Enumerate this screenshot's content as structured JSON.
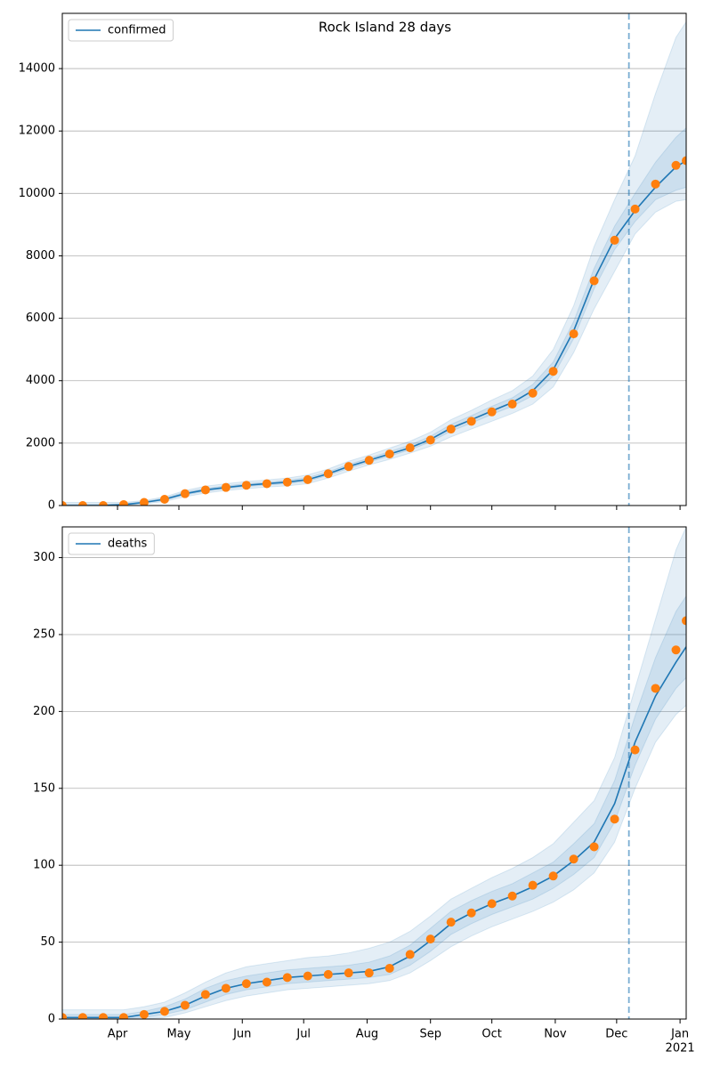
{
  "chart_data": [
    {
      "type": "line",
      "title": "Rock Island 28 days",
      "x": [
        0,
        10,
        20,
        30,
        40,
        50,
        60,
        70,
        80,
        90,
        100,
        110,
        120,
        130,
        140,
        150,
        160,
        170,
        180,
        190,
        200,
        210,
        220,
        230,
        240,
        250,
        260,
        270,
        280,
        290,
        300,
        305
      ],
      "series": [
        {
          "name": "confirmed",
          "color": "#1f77b4",
          "values": [
            0,
            0,
            0,
            30,
            100,
            200,
            380,
            500,
            580,
            650,
            700,
            750,
            830,
            1020,
            1250,
            1450,
            1650,
            1850,
            2120,
            2480,
            2750,
            3030,
            3300,
            3680,
            4350,
            5600,
            7250,
            8550,
            9450,
            10200,
            10850,
            11050
          ]
        },
        {
          "color": "#ff7f0e",
          "values": [
            0,
            0,
            0,
            30,
            100,
            200,
            380,
            500,
            580,
            650,
            700,
            750,
            830,
            1020,
            1250,
            1450,
            1650,
            1850,
            2100,
            2450,
            2700,
            3000,
            3250,
            3600,
            4300,
            5500,
            7200,
            8500,
            9500,
            10300,
            10900,
            11050
          ]
        }
      ],
      "bands": [
        {
          "color": "#1f77b4",
          "lower": [
            0,
            0,
            0,
            0,
            50,
            130,
            280,
            400,
            480,
            540,
            590,
            630,
            700,
            880,
            1100,
            1300,
            1480,
            1680,
            1900,
            2200,
            2450,
            2700,
            2950,
            3250,
            3800,
            4900,
            6300,
            7500,
            8700,
            9400,
            9750,
            9800
          ],
          "upper": [
            100,
            100,
            100,
            100,
            160,
            280,
            480,
            620,
            700,
            770,
            820,
            880,
            980,
            1170,
            1420,
            1620,
            1840,
            2060,
            2350,
            2750,
            3050,
            3380,
            3680,
            4150,
            5000,
            6400,
            8300,
            9800,
            11200,
            13200,
            15000,
            15500
          ]
        },
        {
          "color": "#1f77b4",
          "lower": [
            0,
            0,
            0,
            10,
            80,
            170,
            340,
            460,
            540,
            610,
            660,
            700,
            780,
            970,
            1190,
            1390,
            1590,
            1780,
            2040,
            2380,
            2640,
            2920,
            3180,
            3520,
            4150,
            5350,
            6950,
            8200,
            9100,
            9800,
            10100,
            10200
          ],
          "upper": [
            40,
            40,
            40,
            50,
            130,
            240,
            430,
            550,
            630,
            700,
            750,
            810,
            900,
            1080,
            1320,
            1520,
            1730,
            1940,
            2220,
            2600,
            2880,
            3180,
            3450,
            3880,
            4600,
            5900,
            7600,
            8950,
            10000,
            11000,
            11800,
            12100
          ]
        }
      ],
      "vline": 277,
      "legend": "upper left",
      "grid": true,
      "xlim": [
        0,
        305
      ],
      "ylim": [
        0,
        15770
      ],
      "yticks": [
        0,
        2000,
        4000,
        6000,
        8000,
        10000,
        12000,
        14000
      ],
      "xticks": [
        {
          "value": 27,
          "label": "Apr"
        },
        {
          "value": 57,
          "label": "May"
        },
        {
          "value": 88,
          "label": "Jun"
        },
        {
          "value": 118,
          "label": "Jul"
        },
        {
          "value": 149,
          "label": "Aug"
        },
        {
          "value": 180,
          "label": "Sep"
        },
        {
          "value": 210,
          "label": "Oct"
        },
        {
          "value": 241,
          "label": "Nov"
        },
        {
          "value": 271,
          "label": "Dec"
        },
        {
          "value": 302,
          "label": "Jan"
        }
      ],
      "show_xlabels": false
    },
    {
      "type": "line",
      "x": [
        0,
        10,
        20,
        30,
        40,
        50,
        60,
        70,
        80,
        90,
        100,
        110,
        120,
        130,
        140,
        150,
        160,
        170,
        180,
        190,
        200,
        210,
        220,
        230,
        240,
        250,
        260,
        270,
        280,
        290,
        300,
        305
      ],
      "series": [
        {
          "name": "deaths",
          "color": "#1f77b4",
          "values": [
            1,
            1,
            1,
            1,
            3,
            5,
            9,
            15,
            20,
            23,
            25,
            27,
            28,
            29,
            30,
            31,
            34,
            41,
            51,
            62,
            69,
            75,
            80,
            86,
            93,
            103,
            115,
            140,
            180,
            210,
            232,
            242
          ]
        },
        {
          "color": "#ff7f0e",
          "values": [
            1,
            1,
            1,
            1,
            3,
            5,
            9,
            16,
            20,
            23,
            24,
            27,
            28,
            29,
            30,
            30,
            33,
            42,
            52,
            63,
            69,
            75,
            80,
            87,
            93,
            104,
            112,
            130,
            175,
            215,
            240,
            259
          ]
        }
      ],
      "bands": [
        {
          "color": "#1f77b4",
          "lower": [
            0,
            0,
            0,
            0,
            0,
            1,
            4,
            8,
            12,
            15,
            17,
            19,
            20,
            21,
            22,
            23,
            25,
            30,
            38,
            47,
            54,
            60,
            65,
            70,
            76,
            84,
            95,
            115,
            150,
            180,
            198,
            204
          ],
          "upper": [
            6,
            6,
            6,
            6,
            8,
            11,
            17,
            24,
            30,
            34,
            36,
            38,
            40,
            41,
            43,
            46,
            50,
            57,
            67,
            78,
            85,
            92,
            98,
            105,
            114,
            128,
            142,
            170,
            215,
            260,
            305,
            320
          ]
        },
        {
          "color": "#1f77b4",
          "lower": [
            0,
            0,
            0,
            0,
            1,
            3,
            6,
            11,
            16,
            19,
            21,
            23,
            24,
            25,
            26,
            27,
            29,
            35,
            44,
            55,
            62,
            68,
            73,
            78,
            85,
            94,
            105,
            128,
            165,
            195,
            215,
            222
          ],
          "upper": [
            3,
            3,
            3,
            3,
            5,
            8,
            13,
            20,
            25,
            28,
            30,
            32,
            33,
            34,
            35,
            37,
            41,
            48,
            59,
            70,
            77,
            83,
            88,
            95,
            102,
            114,
            127,
            155,
            197,
            235,
            265,
            275
          ]
        }
      ],
      "vline": 277,
      "legend": "upper left",
      "grid": true,
      "xlim": [
        0,
        305
      ],
      "ylim": [
        0,
        320
      ],
      "yticks": [
        0,
        50,
        100,
        150,
        200,
        250,
        300
      ],
      "xticks": [
        {
          "value": 27,
          "label": "Apr"
        },
        {
          "value": 57,
          "label": "May"
        },
        {
          "value": 88,
          "label": "Jun"
        },
        {
          "value": 118,
          "label": "Jul"
        },
        {
          "value": 149,
          "label": "Aug"
        },
        {
          "value": 180,
          "label": "Sep"
        },
        {
          "value": 210,
          "label": "Oct"
        },
        {
          "value": 241,
          "label": "Nov"
        },
        {
          "value": 271,
          "label": "Dec"
        },
        {
          "value": 302,
          "label": "Jan"
        }
      ],
      "xtick_sublabel": {
        "value": 302,
        "label": "2021"
      },
      "show_xlabels": true
    }
  ]
}
